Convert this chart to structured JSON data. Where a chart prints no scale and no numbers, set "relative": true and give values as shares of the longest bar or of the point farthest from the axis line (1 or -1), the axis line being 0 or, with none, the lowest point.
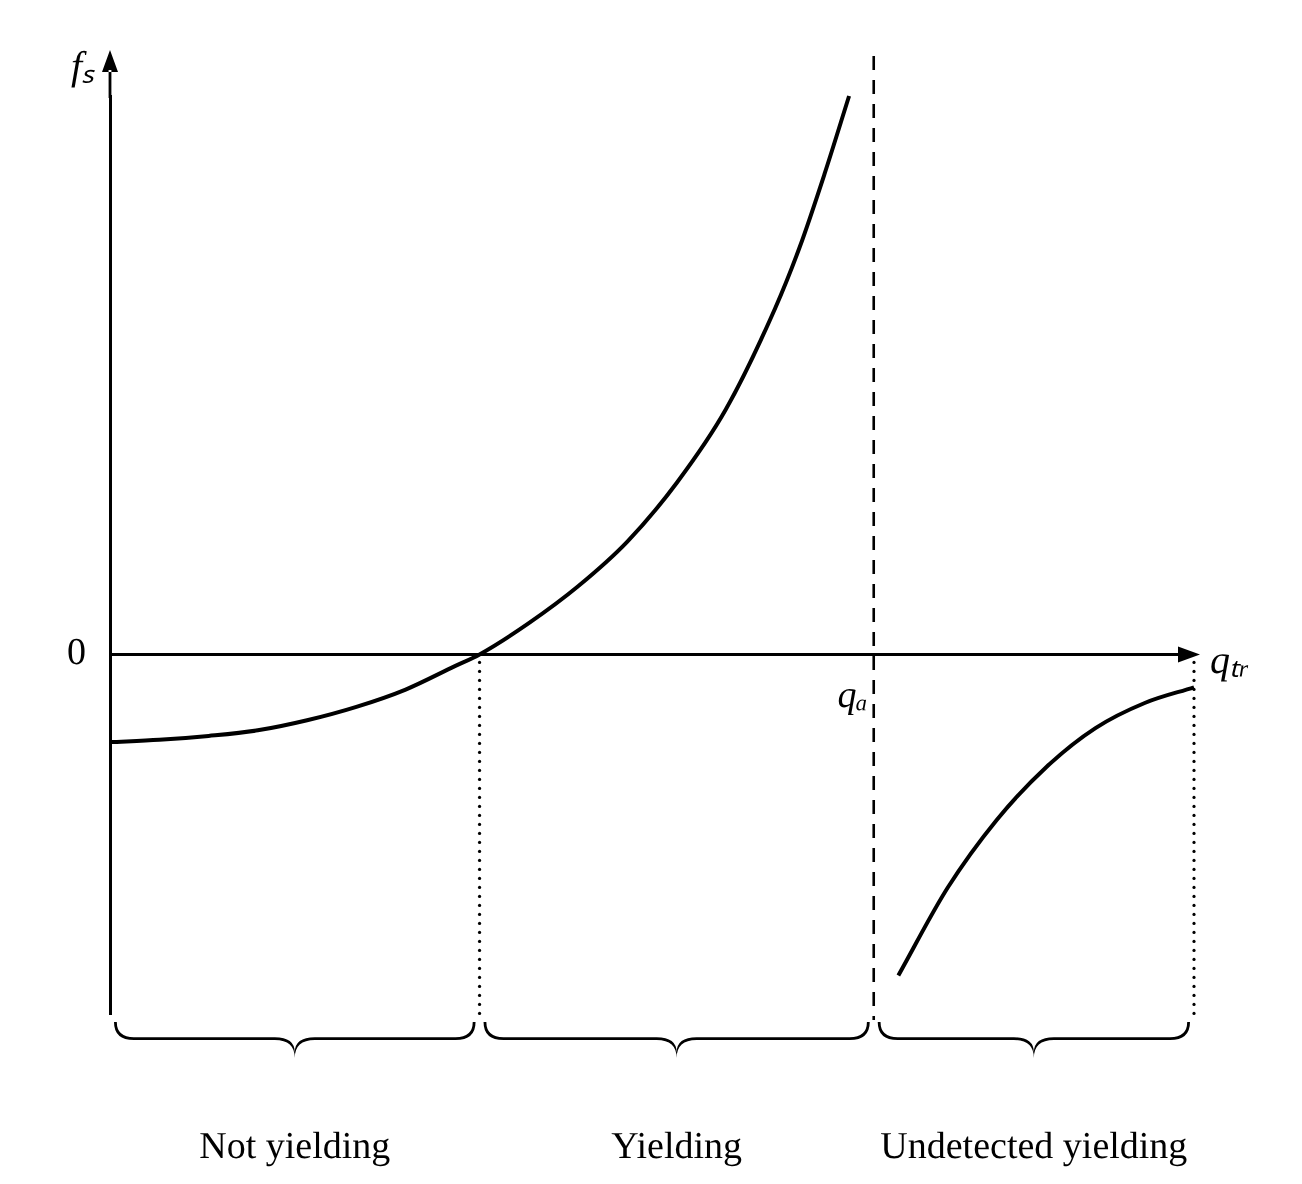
{
  "chart_data": {
    "type": "line",
    "relative": true,
    "xlabel": "qₜᵣ",
    "ylabel": "fₛ",
    "marker": "none",
    "line_style": "solid",
    "grid": false,
    "legend": false,
    "categories": [
      null,
      null,
      null,
      null,
      null,
      null,
      null,
      null,
      null,
      null,
      null,
      null,
      null,
      null,
      null,
      null,
      null,
      null,
      null,
      null,
      null,
      null,
      null,
      null,
      null,
      null,
      null,
      null,
      null,
      null,
      null,
      null,
      null,
      null,
      null,
      null,
      null,
      null,
      null,
      null,
      null,
      null,
      null,
      null,
      null
    ],
    "ref_lines": [
      {
        "axis": "x",
        "line_style": "dotted"
      },
      {
        "axis": "x",
        "label": "qₐ",
        "line_style": "dashed"
      },
      {
        "axis": "x",
        "line_style": "dotted"
      }
    ],
    "annotations": [
      "0",
      "Not yielding",
      "Yielding",
      "Undetected yielding"
    ],
    "series": [
      {
        "color": "#000000",
        "values": [
          -0.157,
          null,
          -0.153,
          null,
          -0.146,
          null,
          -0.136,
          null,
          -0.118,
          null,
          -0.094,
          null,
          -0.063,
          null,
          -0.021,
          0,
          null,
          0.056,
          null,
          0.122,
          null,
          0.202,
          null,
          0.307,
          null,
          0.439,
          null,
          0.62,
          0.73,
          0.86,
          1,
          null,
          null,
          null,
          null,
          null,
          null,
          null,
          null,
          null,
          null,
          null,
          null,
          null,
          null
        ]
      },
      {
        "color": "#000000",
        "values": [
          null,
          null,
          null,
          null,
          null,
          null,
          null,
          null,
          null,
          null,
          null,
          null,
          null,
          null,
          null,
          null,
          null,
          null,
          null,
          null,
          null,
          null,
          null,
          null,
          null,
          null,
          null,
          null,
          null,
          null,
          null,
          null,
          -0.575,
          null,
          -0.418,
          null,
          -0.296,
          null,
          -0.202,
          null,
          -0.132,
          null,
          -0.087,
          null,
          -0.059
        ]
      }
    ]
  }
}
